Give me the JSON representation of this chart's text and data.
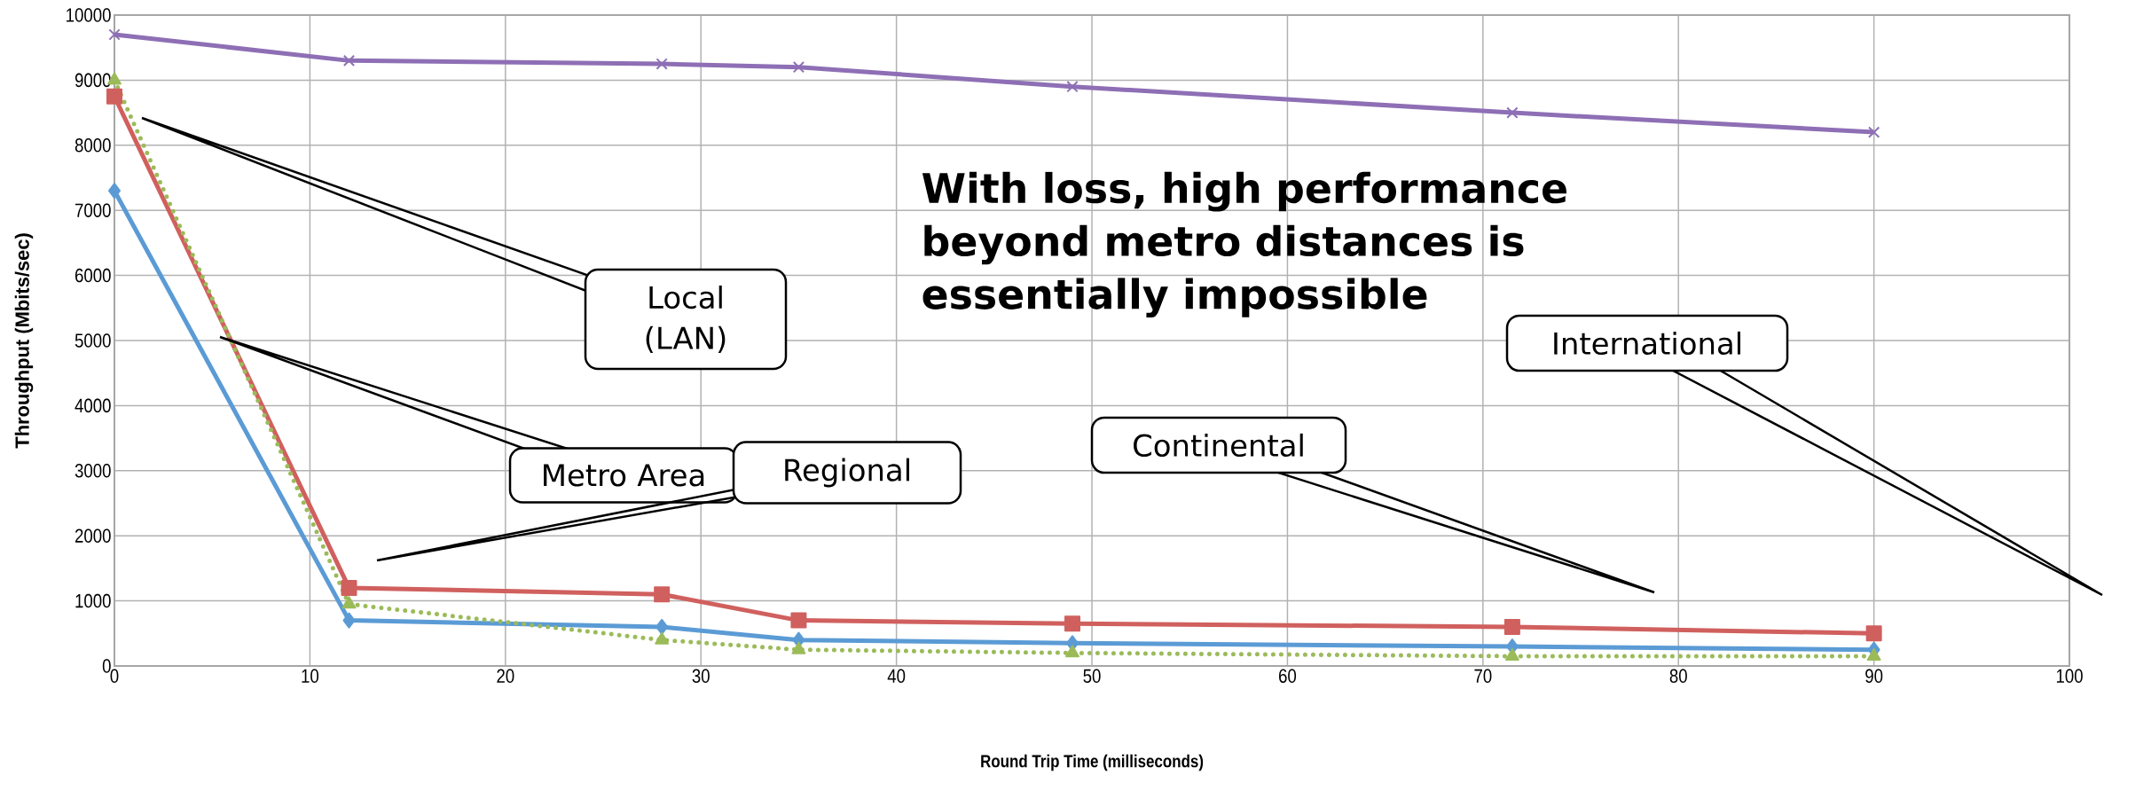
{
  "chart_data": {
    "type": "line",
    "xlabel": "Round Trip Time (milliseconds)",
    "ylabel": "Throughput (Mbits/sec)",
    "x": [
      0,
      12,
      28,
      35,
      49,
      71.5,
      90
    ],
    "series": [
      {
        "color": "#8e6fb5",
        "marker": "cross",
        "line_style": "solid",
        "values": [
          9700,
          9300,
          9250,
          9200,
          8900,
          8500,
          8200
        ]
      },
      {
        "color": "#d0605e",
        "marker": "square",
        "line_style": "solid",
        "values": [
          8750,
          1200,
          1100,
          700,
          650,
          600,
          500
        ]
      },
      {
        "color": "#5b9bd5",
        "marker": "diamond",
        "line_style": "solid",
        "values": [
          7300,
          700,
          600,
          400,
          350,
          300,
          250
        ]
      },
      {
        "color": "#9bbb59",
        "marker": "triangle",
        "line_style": "dotted",
        "values": [
          9000,
          950,
          400,
          250,
          200,
          150,
          150
        ]
      }
    ],
    "annotations": [
      "Local (LAN)",
      "Metro Area",
      "Regional",
      "Continental",
      "International",
      "**With loss, high performance beyond metro distances is essentially impossible**"
    ],
    "xlim": [
      0,
      100
    ],
    "ylim": [
      0,
      10000
    ],
    "xticks": [
      0,
      10,
      20,
      30,
      40,
      50,
      60,
      70,
      80,
      90,
      100
    ],
    "yticks": [
      0,
      1000,
      2000,
      3000,
      4000,
      5000,
      6000,
      7000,
      8000,
      9000,
      10000
    ],
    "grid": true
  }
}
